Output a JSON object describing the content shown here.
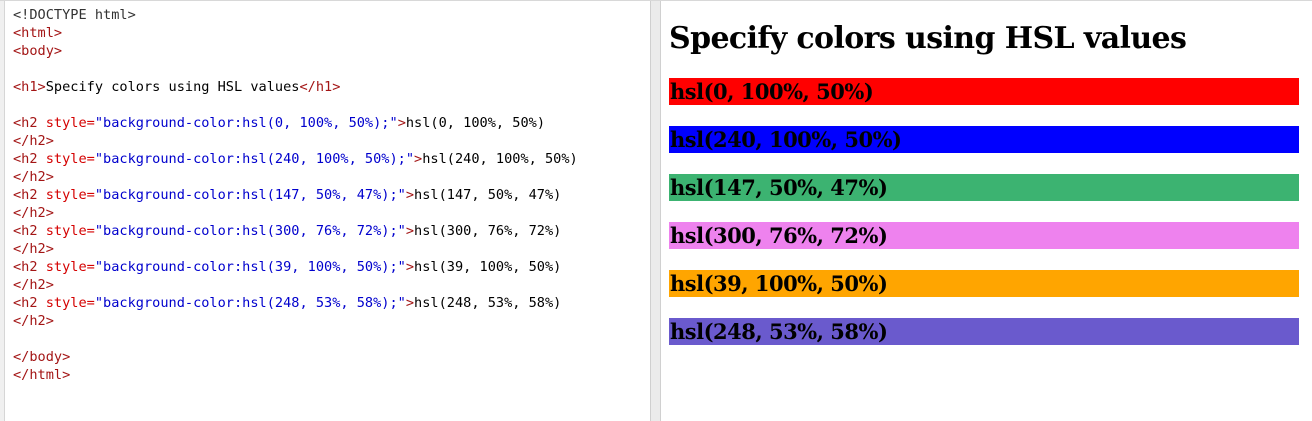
{
  "code_editor": {
    "lines": [
      [
        {
          "t": "doctype",
          "v": "<!DOCTYPE html>"
        }
      ],
      [
        {
          "t": "tag",
          "v": "<html>"
        }
      ],
      [
        {
          "t": "tag",
          "v": "<body>"
        }
      ],
      [],
      [
        {
          "t": "tag",
          "v": "<h1>"
        },
        {
          "t": "text",
          "v": "Specify colors using HSL values"
        },
        {
          "t": "tag",
          "v": "</h1>"
        }
      ],
      [],
      [
        {
          "t": "tag",
          "v": "<h2"
        },
        {
          "t": "attr",
          "v": " style="
        },
        {
          "t": "val",
          "v": "\"background-color:hsl(0, 100%, 50%);\""
        },
        {
          "t": "tag",
          "v": ">"
        },
        {
          "t": "text",
          "v": "hsl(0, 100%, 50%)"
        }
      ],
      [
        {
          "t": "tag",
          "v": "</h2>"
        }
      ],
      [
        {
          "t": "tag",
          "v": "<h2"
        },
        {
          "t": "attr",
          "v": " style="
        },
        {
          "t": "val",
          "v": "\"background-color:hsl(240, 100%, 50%);\""
        },
        {
          "t": "tag",
          "v": ">"
        },
        {
          "t": "text",
          "v": "hsl(240, 100%, 50%)"
        }
      ],
      [
        {
          "t": "tag",
          "v": "</h2>"
        }
      ],
      [
        {
          "t": "tag",
          "v": "<h2"
        },
        {
          "t": "attr",
          "v": " style="
        },
        {
          "t": "val",
          "v": "\"background-color:hsl(147, 50%, 47%);\""
        },
        {
          "t": "tag",
          "v": ">"
        },
        {
          "t": "text",
          "v": "hsl(147, 50%, 47%)"
        }
      ],
      [
        {
          "t": "tag",
          "v": "</h2>"
        }
      ],
      [
        {
          "t": "tag",
          "v": "<h2"
        },
        {
          "t": "attr",
          "v": " style="
        },
        {
          "t": "val",
          "v": "\"background-color:hsl(300, 76%, 72%);\""
        },
        {
          "t": "tag",
          "v": ">"
        },
        {
          "t": "text",
          "v": "hsl(300, 76%, 72%)"
        }
      ],
      [
        {
          "t": "tag",
          "v": "</h2>"
        }
      ],
      [
        {
          "t": "tag",
          "v": "<h2"
        },
        {
          "t": "attr",
          "v": " style="
        },
        {
          "t": "val",
          "v": "\"background-color:hsl(39, 100%, 50%);\""
        },
        {
          "t": "tag",
          "v": ">"
        },
        {
          "t": "text",
          "v": "hsl(39, 100%, 50%)"
        }
      ],
      [
        {
          "t": "tag",
          "v": "</h2>"
        }
      ],
      [
        {
          "t": "tag",
          "v": "<h2"
        },
        {
          "t": "attr",
          "v": " style="
        },
        {
          "t": "val",
          "v": "\"background-color:hsl(248, 53%, 58%);\""
        },
        {
          "t": "tag",
          "v": ">"
        },
        {
          "t": "text",
          "v": "hsl(248, 53%, 58%)"
        }
      ],
      [
        {
          "t": "tag",
          "v": "</h2>"
        }
      ],
      [],
      [
        {
          "t": "tag",
          "v": "</body>"
        }
      ],
      [
        {
          "t": "tag",
          "v": "</html>"
        }
      ]
    ]
  },
  "result": {
    "heading": "Specify colors using HSL values",
    "swatches": [
      {
        "label": "hsl(0, 100%, 50%)",
        "color": "#ff0000"
      },
      {
        "label": "hsl(240, 100%, 50%)",
        "color": "#0000ff"
      },
      {
        "label": "hsl(147, 50%, 47%)",
        "color": "#3cb371"
      },
      {
        "label": "hsl(300, 76%, 72%)",
        "color": "#ee82ee"
      },
      {
        "label": "hsl(39, 100%, 50%)",
        "color": "#ffa500"
      },
      {
        "label": "hsl(248, 53%, 58%)",
        "color": "#6a5acd"
      }
    ]
  }
}
